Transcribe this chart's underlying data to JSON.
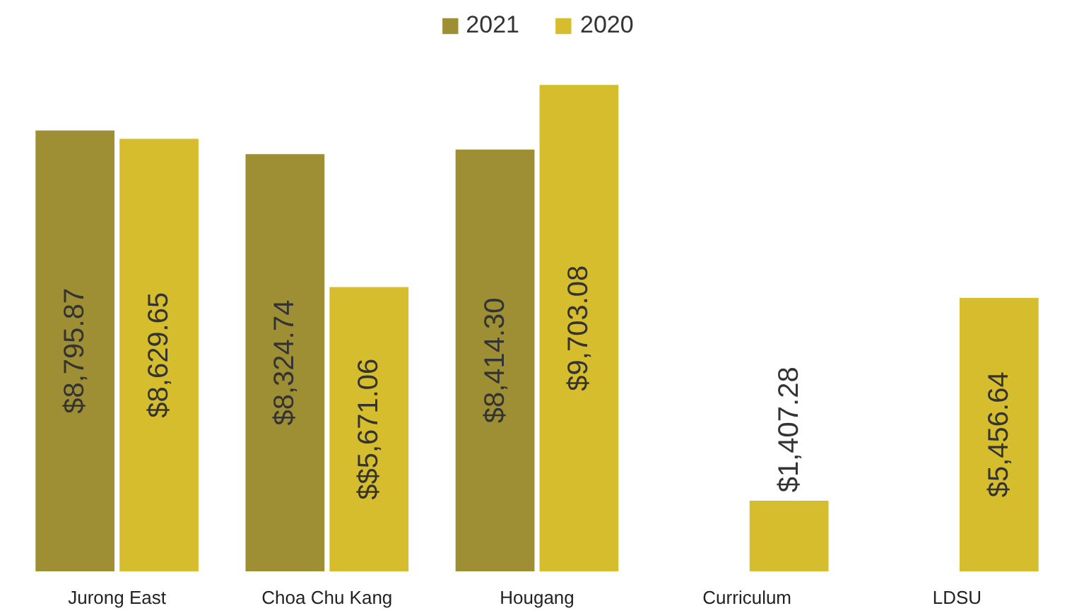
{
  "chart_data": {
    "type": "bar",
    "categories": [
      "Jurong East",
      "Choa Chu Kang",
      "Hougang",
      "Curriculum",
      "LDSU"
    ],
    "series": [
      {
        "name": "2021",
        "color": "#9e8f35",
        "values": [
          8795.87,
          8324.74,
          8414.3,
          null,
          null
        ],
        "value_labels": [
          "$8,795.87",
          "$8,324.74",
          "$8,414.30",
          null,
          null
        ]
      },
      {
        "name": "2020",
        "color": "#d6bd2e",
        "values": [
          8629.65,
          5671.06,
          9703.08,
          1407.28,
          5456.64
        ],
        "value_labels": [
          "$8,629.65",
          "$$5,671.06",
          "$9,703.08",
          "$1,407.28",
          "$5,456.64"
        ]
      }
    ],
    "legend": "top"
  }
}
